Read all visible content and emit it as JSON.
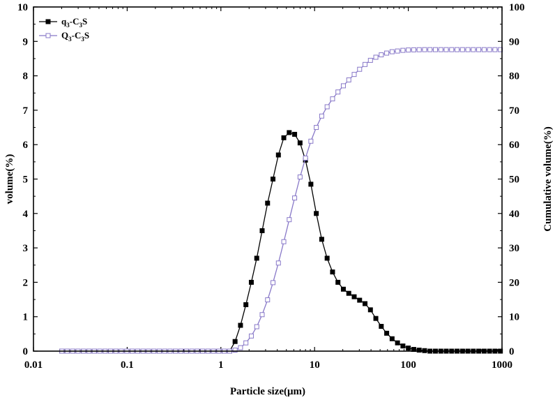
{
  "chart_data": {
    "type": "line",
    "xscale": "log",
    "xlim": [
      0.01,
      1000
    ],
    "ylim_left": [
      0,
      10
    ],
    "ylim_right": [
      0,
      100
    ],
    "xlabel": "Particle size(μm)",
    "ylabel_left": "volume(%)",
    "ylabel_right": "Cumulative volume(%)",
    "x_ticks": [
      0.01,
      0.1,
      1,
      10,
      100,
      1000
    ],
    "x_tick_labels": [
      "0.01",
      "0.1",
      "1",
      "10",
      "100",
      "1000"
    ],
    "y_left_ticks": [
      0,
      1,
      2,
      3,
      4,
      5,
      6,
      7,
      8,
      9,
      10
    ],
    "y_left_tick_labels": [
      "0",
      "1",
      "2",
      "3",
      "4",
      "5",
      "6",
      "7",
      "8",
      "9",
      "10"
    ],
    "y_right_ticks": [
      0,
      10,
      20,
      30,
      40,
      50,
      60,
      70,
      80,
      90,
      100
    ],
    "y_right_tick_labels": [
      "0",
      "10",
      "20",
      "30",
      "40",
      "50",
      "60",
      "70",
      "80",
      "90",
      "100"
    ],
    "legend_position": "top-left",
    "grid": false,
    "series": [
      {
        "name": "q3-C3S",
        "name_main": "q",
        "name_sub1": "3",
        "name_mid": "-C",
        "name_sub2": "3",
        "name_end": "S",
        "axis": "left",
        "marker": "filled-square",
        "color": "#000000",
        "x": [
          0.0201,
          0.0229,
          0.0262,
          0.0299,
          0.0342,
          0.0391,
          0.0446,
          0.0509,
          0.0582,
          0.0665,
          0.0759,
          0.0867,
          0.0991,
          0.1132,
          0.1293,
          0.1477,
          0.1687,
          0.1927,
          0.2201,
          0.2514,
          0.2872,
          0.3281,
          0.3748,
          0.4281,
          0.489,
          0.5586,
          0.6381,
          0.7289,
          0.8326,
          0.951,
          1.0864,
          1.2409,
          1.4175,
          1.6192,
          1.8496,
          2.1128,
          2.4134,
          2.7568,
          3.1491,
          3.5972,
          4.109,
          4.6937,
          5.3616,
          6.1245,
          6.996,
          7.9915,
          9.1287,
          10.4276,
          11.9114,
          13.6063,
          15.5424,
          17.754,
          20.2802,
          23.166,
          26.4624,
          30.2278,
          34.5291,
          39.4424,
          45.0548,
          51.4657,
          58.7891,
          67.1545,
          76.7102,
          87.6256,
          100.0942,
          114.3372,
          130.6069,
          149.1917,
          170.421,
          194.6712,
          222.3721,
          254.0147,
          290.1597,
          331.4478,
          378.611,
          432.4853,
          494.026,
          564.3232,
          644.6233,
          736.349,
          841.1267,
          960.8133
        ],
        "y": [
          0,
          0,
          0,
          0,
          0,
          0,
          0,
          0,
          0,
          0,
          0,
          0,
          0,
          0,
          0,
          0,
          0,
          0,
          0,
          0,
          0,
          0,
          0,
          0,
          0,
          0,
          0,
          0,
          0,
          0,
          0,
          0,
          0.28,
          0.75,
          1.35,
          2.0,
          2.7,
          3.5,
          4.3,
          5.0,
          5.7,
          6.2,
          6.35,
          6.3,
          6.05,
          5.55,
          4.85,
          4.0,
          3.25,
          2.7,
          2.3,
          2.0,
          1.8,
          1.68,
          1.58,
          1.48,
          1.38,
          1.2,
          0.95,
          0.72,
          0.52,
          0.36,
          0.24,
          0.15,
          0.09,
          0.05,
          0.03,
          0.015,
          0,
          0,
          0,
          0,
          0,
          0,
          0,
          0,
          0,
          0,
          0,
          0,
          0,
          0
        ]
      },
      {
        "name": "Q3-C3S",
        "name_main": "Q",
        "name_sub1": "3",
        "name_mid": "-C",
        "name_sub2": "3",
        "name_end": "S",
        "axis": "right",
        "marker": "open-square",
        "color": "#8878c8",
        "x": [
          0.0201,
          0.0229,
          0.0262,
          0.0299,
          0.0342,
          0.0391,
          0.0446,
          0.0509,
          0.0582,
          0.0665,
          0.0759,
          0.0867,
          0.0991,
          0.1132,
          0.1293,
          0.1477,
          0.1687,
          0.1927,
          0.2201,
          0.2514,
          0.2872,
          0.3281,
          0.3748,
          0.4281,
          0.489,
          0.5586,
          0.6381,
          0.7289,
          0.8326,
          0.951,
          1.0864,
          1.2409,
          1.4175,
          1.6192,
          1.8496,
          2.1128,
          2.4134,
          2.7568,
          3.1491,
          3.5972,
          4.109,
          4.6937,
          5.3616,
          6.1245,
          6.996,
          7.9915,
          9.1287,
          10.4276,
          11.9114,
          13.6063,
          15.5424,
          17.754,
          20.2802,
          23.166,
          26.4624,
          30.2278,
          34.5291,
          39.4424,
          45.0548,
          51.4657,
          58.7891,
          67.1545,
          76.7102,
          87.6256,
          100.0942,
          114.3372,
          130.6069,
          149.1917,
          170.421,
          194.6712,
          222.3721,
          254.0147,
          290.1597,
          331.4478,
          378.611,
          432.4853,
          494.026,
          564.3232,
          644.6233,
          736.349,
          841.1267,
          960.8133
        ],
        "y": [
          0,
          0,
          0,
          0,
          0,
          0,
          0,
          0,
          0,
          0,
          0,
          0,
          0,
          0,
          0,
          0,
          0,
          0,
          0,
          0,
          0,
          0,
          0,
          0,
          0,
          0,
          0,
          0,
          0,
          0,
          0,
          0,
          0.3,
          1.0,
          2.4,
          4.4,
          7.1,
          10.6,
          14.9,
          19.9,
          25.6,
          31.8,
          38.2,
          44.5,
          50.6,
          56.1,
          61.0,
          65.0,
          68.3,
          71.0,
          73.3,
          75.3,
          77.1,
          78.8,
          80.4,
          81.9,
          83.3,
          84.5,
          85.4,
          86.1,
          86.6,
          87.0,
          87.2,
          87.4,
          87.5,
          87.55,
          87.58,
          87.6,
          87.6,
          87.6,
          87.6,
          87.6,
          87.6,
          87.6,
          87.6,
          87.6,
          87.6,
          87.6,
          87.6,
          87.6,
          87.6,
          87.6
        ]
      }
    ]
  }
}
